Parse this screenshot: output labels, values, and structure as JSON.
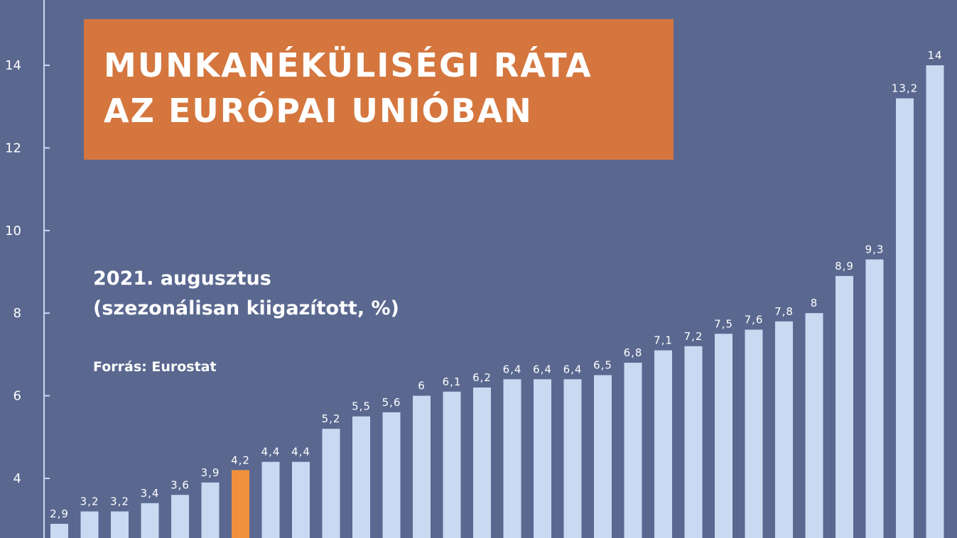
{
  "title_lines": [
    "MUNKANÉKÜLISÉGI RÁTA",
    "AZ EURÓPAI UNIÓBAN"
  ],
  "subtitle_lines": [
    "2021. augusztus",
    "(szezonálisan kiigazított, %)"
  ],
  "source": "Forrás: Eurostat",
  "colors": {
    "background": "#5a6890",
    "bar": "#c8d9f2",
    "highlight": "#f0903d",
    "title_box": "#d4763e",
    "axis": "#c8d9f2"
  },
  "chart_data": {
    "type": "bar",
    "title": "MUNKANÉKÜLISÉGI RÁTA AZ EURÓPAI UNIÓBAN",
    "subtitle": "2021. augusztus (szezonálisan kiigazított, %)",
    "xlabel": "",
    "ylabel": "",
    "ylim": [
      2.5,
      15.5
    ],
    "yticks": [
      4,
      6,
      8,
      10,
      12,
      14
    ],
    "ytick_labels": [
      "4",
      "6",
      "8",
      "10",
      "12",
      "14"
    ],
    "values": [
      2.9,
      3.2,
      3.2,
      3.4,
      3.6,
      3.9,
      4.2,
      4.4,
      4.4,
      5.2,
      5.5,
      5.6,
      6,
      6.1,
      6.2,
      6.4,
      6.4,
      6.4,
      6.5,
      6.8,
      7.1,
      7.2,
      7.5,
      7.6,
      7.8,
      8,
      8.9,
      9.3,
      13.2,
      14
    ],
    "labels": [
      "2,9",
      "3,2",
      "3,2",
      "3,4",
      "3,6",
      "3,9",
      "4,2",
      "4,4",
      "4,4",
      "5,2",
      "5,5",
      "5,6",
      "6",
      "6,1",
      "6,2",
      "6,4",
      "6,4",
      "6,4",
      "6,5",
      "6,8",
      "7,1",
      "7,2",
      "7,5",
      "7,6",
      "7,8",
      "8",
      "8,9",
      "9,3",
      "13,2",
      "14"
    ],
    "highlight_index": 6
  }
}
